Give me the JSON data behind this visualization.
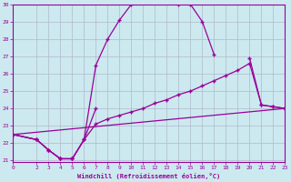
{
  "xlabel": "Windchill (Refroidissement éolien,°C)",
  "bg_color": "#cce9f0",
  "line_color": "#990099",
  "grid_color": "#b0b8cc",
  "ylim": [
    21,
    30
  ],
  "xlim": [
    0,
    23
  ],
  "yticks": [
    21,
    22,
    23,
    24,
    25,
    26,
    27,
    28,
    29,
    30
  ],
  "xticks": [
    0,
    2,
    3,
    4,
    5,
    6,
    7,
    8,
    9,
    10,
    11,
    12,
    13,
    14,
    15,
    16,
    17,
    18,
    19,
    20,
    21,
    22,
    23
  ],
  "line1_x": [
    0,
    2,
    3,
    4,
    5,
    6,
    7,
    8,
    9,
    10,
    11,
    12,
    13,
    14,
    15,
    16,
    17
  ],
  "line1_y": [
    22.5,
    22.2,
    21.6,
    21.1,
    21.1,
    22.2,
    26.5,
    28.0,
    29.1,
    30.0,
    30.1,
    30.2,
    30.2,
    30.0,
    30.0,
    29.0,
    27.1
  ],
  "line2_x": [
    0,
    2,
    3,
    4,
    5,
    6,
    7,
    20,
    21,
    22,
    23
  ],
  "line2_y": [
    22.5,
    22.2,
    21.6,
    21.1,
    21.1,
    22.2,
    24.0,
    26.9,
    24.2,
    24.1,
    24.0
  ],
  "line3_x": [
    0,
    2,
    3,
    4,
    5,
    6,
    7,
    8,
    9,
    10,
    11,
    12,
    13,
    14,
    15,
    16,
    17,
    18,
    19,
    20,
    21,
    22,
    23
  ],
  "line3_y": [
    22.5,
    22.2,
    21.6,
    21.1,
    21.1,
    22.2,
    23.1,
    23.4,
    23.6,
    23.8,
    24.0,
    24.3,
    24.5,
    24.8,
    25.0,
    25.3,
    25.6,
    25.9,
    26.2,
    26.6,
    24.2,
    24.1,
    24.0
  ],
  "line4_x": [
    0,
    23
  ],
  "line4_y": [
    22.5,
    24.0
  ]
}
